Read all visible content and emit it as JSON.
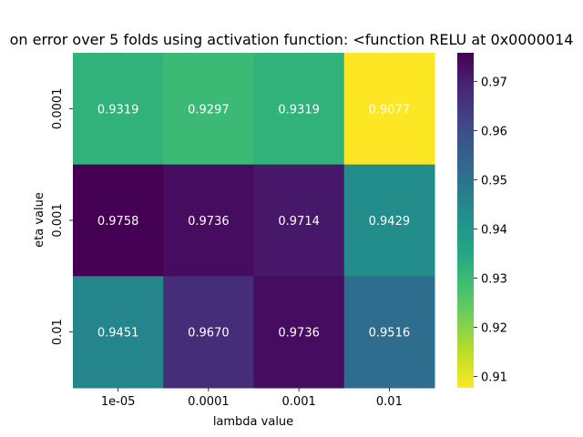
{
  "chart_data": {
    "type": "heatmap",
    "title": "on error over 5 folds using activation function: <function RELU at 0x0000014",
    "xlabel": "lambda value",
    "ylabel": "eta value",
    "x_categories": [
      "1e-05",
      "0.0001",
      "0.001",
      "0.01"
    ],
    "y_categories": [
      "0.0001",
      "0.001",
      "0.01"
    ],
    "values": [
      [
        0.9319,
        0.9297,
        0.9319,
        0.9077
      ],
      [
        0.9758,
        0.9736,
        0.9714,
        0.9429
      ],
      [
        0.9451,
        0.967,
        0.9736,
        0.9516
      ]
    ],
    "value_format": "4 decimals",
    "colormap": "viridis_r",
    "vmin": 0.9077,
    "vmax": 0.9758,
    "colorbar_ticks": [
      "0.91",
      "0.92",
      "0.93",
      "0.94",
      "0.95",
      "0.96",
      "0.97"
    ],
    "colorbar_tick_values": [
      0.91,
      0.92,
      0.93,
      0.94,
      0.95,
      0.96,
      0.97
    ],
    "annotation_color": "#ffffff",
    "grid": false
  }
}
